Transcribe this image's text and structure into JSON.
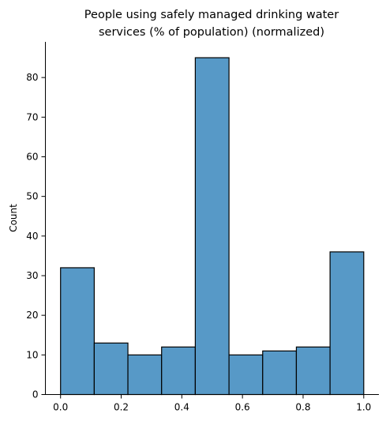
{
  "chart_data": {
    "type": "bar",
    "title_lines": [
      "People using safely managed drinking water",
      "services (% of population) (normalized)"
    ],
    "xlabel": "",
    "ylabel": "Count",
    "bin_edges": [
      0.0,
      0.1111,
      0.2222,
      0.3333,
      0.4444,
      0.5556,
      0.6667,
      0.7778,
      0.8889,
      1.0
    ],
    "values": [
      32,
      13,
      10,
      12,
      85,
      10,
      11,
      12,
      36
    ],
    "xlim": [
      -0.05,
      1.05
    ],
    "ylim": [
      0,
      89
    ],
    "x_ticks": [
      0.0,
      0.2,
      0.4,
      0.6,
      0.8,
      1.0
    ],
    "x_tick_labels": [
      "0.0",
      "0.2",
      "0.4",
      "0.6",
      "0.8",
      "1.0"
    ],
    "y_ticks": [
      0,
      10,
      20,
      30,
      40,
      50,
      60,
      70,
      80
    ],
    "y_tick_labels": [
      "0",
      "10",
      "20",
      "30",
      "40",
      "50",
      "60",
      "70",
      "80"
    ],
    "bar_color": "#5799c7",
    "edge_color": "#000000",
    "grid": false,
    "legend": "none"
  }
}
